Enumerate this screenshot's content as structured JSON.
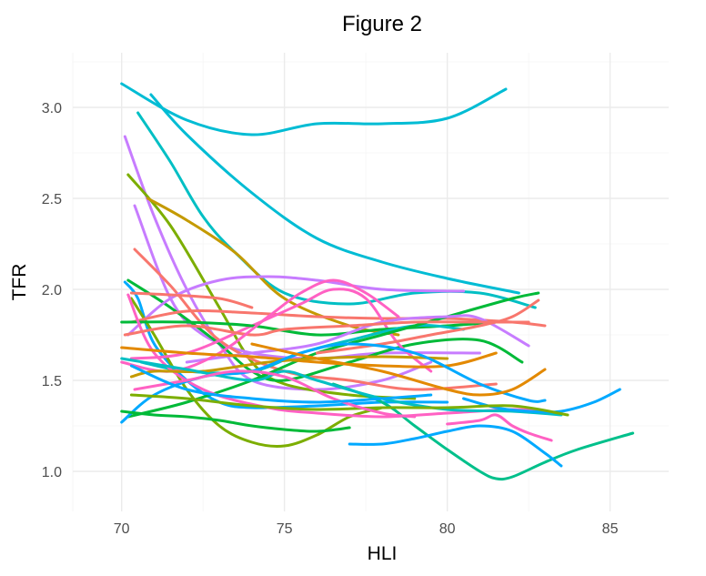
{
  "chart_data": {
    "type": "line",
    "title": "Figure 2",
    "xlabel": "HLI",
    "ylabel": "TFR",
    "xlim": [
      68.5,
      86.8
    ],
    "ylim": [
      0.78,
      3.3
    ],
    "x_ticks": [
      70,
      75,
      80,
      85
    ],
    "y_ticks": [
      1.0,
      1.5,
      2.0,
      2.5,
      3.0
    ],
    "x_tick_labels": [
      "70",
      "75",
      "80",
      "85"
    ],
    "y_tick_labels": [
      "1.0",
      "1.5",
      "2.0",
      "2.5",
      "3.0"
    ],
    "grid": true,
    "legend": "none",
    "series": [
      {
        "color": "#00BCD4",
        "points": [
          [
            70.0,
            3.13
          ],
          [
            72.0,
            2.93
          ],
          [
            74.0,
            2.85
          ],
          [
            76.0,
            2.91
          ],
          [
            78.0,
            2.91
          ],
          [
            80.0,
            2.94
          ],
          [
            81.8,
            3.1
          ]
        ]
      },
      {
        "color": "#00BCD4",
        "points": [
          [
            70.9,
            3.07
          ],
          [
            72.0,
            2.85
          ],
          [
            74.0,
            2.53
          ],
          [
            76.0,
            2.28
          ],
          [
            78.0,
            2.15
          ],
          [
            80.0,
            2.06
          ],
          [
            82.2,
            1.98
          ]
        ]
      },
      {
        "color": "#00BFC4",
        "points": [
          [
            70.5,
            2.97
          ],
          [
            71.5,
            2.7
          ],
          [
            72.5,
            2.4
          ],
          [
            73.5,
            2.2
          ],
          [
            75.0,
            1.98
          ],
          [
            77.0,
            1.92
          ],
          [
            79.0,
            1.98
          ],
          [
            81.0,
            1.98
          ],
          [
            82.7,
            1.9
          ]
        ]
      },
      {
        "color": "#C77CFF",
        "points": [
          [
            70.1,
            2.84
          ],
          [
            71.0,
            2.4
          ],
          [
            72.0,
            2.0
          ],
          [
            73.0,
            1.7
          ],
          [
            74.0,
            1.5
          ],
          [
            76.0,
            1.45
          ],
          [
            78.0,
            1.5
          ],
          [
            79.5,
            1.6
          ]
        ]
      },
      {
        "color": "#7CAE00",
        "points": [
          [
            70.2,
            2.63
          ],
          [
            71.5,
            2.35
          ],
          [
            73.0,
            1.9
          ],
          [
            74.0,
            1.6
          ],
          [
            75.0,
            1.48
          ],
          [
            77.0,
            1.42
          ],
          [
            79.0,
            1.4
          ]
        ]
      },
      {
        "color": "#C77CFF",
        "points": [
          [
            70.4,
            2.46
          ],
          [
            71.5,
            1.95
          ],
          [
            72.5,
            1.75
          ],
          [
            74.0,
            1.65
          ],
          [
            76.0,
            1.62
          ],
          [
            78.0,
            1.65
          ],
          [
            81.0,
            1.65
          ]
        ]
      },
      {
        "color": "#C49A00",
        "points": [
          [
            70.8,
            2.5
          ],
          [
            72.0,
            2.38
          ],
          [
            73.5,
            2.2
          ],
          [
            75.0,
            1.95
          ],
          [
            77.0,
            1.8
          ],
          [
            78.5,
            1.75
          ]
        ]
      },
      {
        "color": "#F8766D",
        "points": [
          [
            70.4,
            2.22
          ],
          [
            71.5,
            2.02
          ],
          [
            73.0,
            1.72
          ],
          [
            75.0,
            1.55
          ],
          [
            77.0,
            1.5
          ],
          [
            79.0,
            1.45
          ],
          [
            81.5,
            1.48
          ]
        ]
      },
      {
        "color": "#00A9FF",
        "points": [
          [
            70.1,
            2.04
          ],
          [
            70.5,
            1.95
          ],
          [
            71.0,
            1.7
          ],
          [
            72.0,
            1.5
          ],
          [
            73.0,
            1.38
          ],
          [
            74.0,
            1.35
          ],
          [
            76.0,
            1.36
          ],
          [
            78.0,
            1.38
          ],
          [
            80.0,
            1.38
          ]
        ]
      },
      {
        "color": "#00BA38",
        "points": [
          [
            70.2,
            2.05
          ],
          [
            71.5,
            1.9
          ],
          [
            73.0,
            1.7
          ],
          [
            74.0,
            1.55
          ],
          [
            75.0,
            1.5
          ],
          [
            77.0,
            1.6
          ],
          [
            79.0,
            1.7
          ],
          [
            81.0,
            1.72
          ],
          [
            82.3,
            1.6
          ]
        ]
      },
      {
        "color": "#7CAE00",
        "points": [
          [
            70.3,
            1.95
          ],
          [
            71.0,
            1.75
          ],
          [
            72.0,
            1.45
          ],
          [
            73.0,
            1.25
          ],
          [
            74.0,
            1.16
          ],
          [
            75.0,
            1.14
          ],
          [
            76.0,
            1.2
          ],
          [
            77.0,
            1.3
          ],
          [
            78.0,
            1.35
          ]
        ]
      },
      {
        "color": "#C77CFF",
        "points": [
          [
            70.2,
            1.75
          ],
          [
            71.5,
            1.95
          ],
          [
            73.0,
            2.05
          ],
          [
            74.5,
            2.07
          ],
          [
            76.0,
            2.05
          ],
          [
            78.0,
            2.0
          ],
          [
            80.5,
            1.99
          ]
        ]
      },
      {
        "color": "#F8766D",
        "points": [
          [
            70.3,
            1.82
          ],
          [
            72.0,
            1.88
          ],
          [
            74.0,
            1.87
          ],
          [
            76.0,
            1.85
          ],
          [
            78.0,
            1.84
          ],
          [
            80.0,
            1.84
          ],
          [
            82.0,
            1.82
          ],
          [
            83.0,
            1.8
          ]
        ]
      },
      {
        "color": "#FF61C3",
        "points": [
          [
            70.3,
            1.62
          ],
          [
            72.0,
            1.65
          ],
          [
            74.0,
            1.8
          ],
          [
            75.5,
            1.92
          ],
          [
            76.5,
            2.0
          ],
          [
            77.5,
            1.95
          ],
          [
            78.5,
            1.7
          ],
          [
            79.5,
            1.55
          ]
        ]
      },
      {
        "color": "#00BA38",
        "points": [
          [
            70.0,
            1.82
          ],
          [
            72.0,
            1.82
          ],
          [
            74.0,
            1.8
          ],
          [
            76.0,
            1.75
          ],
          [
            78.0,
            1.78
          ],
          [
            80.0,
            1.8
          ],
          [
            81.5,
            1.82
          ]
        ]
      },
      {
        "color": "#00BFC4",
        "points": [
          [
            70.6,
            1.6
          ],
          [
            72.0,
            1.55
          ],
          [
            74.0,
            1.55
          ],
          [
            75.5,
            1.65
          ],
          [
            77.0,
            1.72
          ],
          [
            79.0,
            1.8
          ],
          [
            80.5,
            1.78
          ]
        ]
      },
      {
        "color": "#00BA38",
        "points": [
          [
            70.2,
            1.3
          ],
          [
            72.0,
            1.38
          ],
          [
            74.0,
            1.5
          ],
          [
            76.0,
            1.65
          ],
          [
            78.0,
            1.75
          ],
          [
            80.0,
            1.85
          ],
          [
            82.0,
            1.95
          ],
          [
            82.8,
            1.98
          ]
        ]
      },
      {
        "color": "#C77CFF",
        "points": [
          [
            72.0,
            1.6
          ],
          [
            74.0,
            1.65
          ],
          [
            76.0,
            1.7
          ],
          [
            78.0,
            1.82
          ],
          [
            80.0,
            1.85
          ],
          [
            81.0,
            1.84
          ],
          [
            82.5,
            1.69
          ]
        ]
      },
      {
        "color": "#FF61C3",
        "points": [
          [
            70.2,
            1.97
          ],
          [
            71.0,
            1.65
          ],
          [
            72.5,
            1.45
          ],
          [
            74.5,
            1.35
          ],
          [
            76.0,
            1.32
          ],
          [
            78.0,
            1.3
          ],
          [
            80.0,
            1.32
          ],
          [
            82.0,
            1.34
          ],
          [
            83.0,
            1.33
          ]
        ]
      },
      {
        "color": "#F8766D",
        "points": [
          [
            70.1,
            1.75
          ],
          [
            72.0,
            1.8
          ],
          [
            74.0,
            1.75
          ],
          [
            75.0,
            1.78
          ],
          [
            77.0,
            1.8
          ],
          [
            79.0,
            1.82
          ],
          [
            81.0,
            1.82
          ],
          [
            82.5,
            1.82
          ]
        ]
      },
      {
        "color": "#FF61C3",
        "points": [
          [
            70.0,
            1.6
          ],
          [
            71.5,
            1.55
          ],
          [
            73.0,
            1.65
          ],
          [
            74.5,
            1.85
          ],
          [
            75.5,
            1.98
          ],
          [
            76.5,
            2.05
          ],
          [
            77.5,
            1.98
          ],
          [
            78.5,
            1.85
          ]
        ]
      },
      {
        "color": "#F8766D",
        "points": [
          [
            76.0,
            1.65
          ],
          [
            78.0,
            1.7
          ],
          [
            79.5,
            1.75
          ],
          [
            81.0,
            1.8
          ],
          [
            82.0,
            1.85
          ],
          [
            82.8,
            1.94
          ]
        ]
      },
      {
        "color": "#E38900",
        "points": [
          [
            70.0,
            1.68
          ],
          [
            72.0,
            1.65
          ],
          [
            74.0,
            1.63
          ],
          [
            76.0,
            1.6
          ],
          [
            78.0,
            1.58
          ],
          [
            80.0,
            1.58
          ],
          [
            81.5,
            1.65
          ]
        ]
      },
      {
        "color": "#C49A00",
        "points": [
          [
            70.3,
            1.52
          ],
          [
            71.0,
            1.55
          ],
          [
            72.5,
            1.55
          ],
          [
            74.5,
            1.6
          ],
          [
            76.0,
            1.62
          ],
          [
            78.0,
            1.63
          ],
          [
            80.0,
            1.62
          ]
        ]
      },
      {
        "color": "#00A9FF",
        "points": [
          [
            70.0,
            1.27
          ],
          [
            71.0,
            1.42
          ],
          [
            72.5,
            1.52
          ],
          [
            74.0,
            1.55
          ],
          [
            75.5,
            1.65
          ],
          [
            77.0,
            1.7
          ],
          [
            79.0,
            1.65
          ],
          [
            81.0,
            1.48
          ],
          [
            82.5,
            1.39
          ],
          [
            83.0,
            1.39
          ]
        ]
      },
      {
        "color": "#00C08B",
        "points": [
          [
            76.5,
            1.48
          ],
          [
            78.0,
            1.38
          ],
          [
            79.0,
            1.25
          ],
          [
            80.0,
            1.12
          ],
          [
            81.0,
            1.0
          ],
          [
            81.5,
            0.96
          ],
          [
            82.0,
            0.97
          ],
          [
            83.0,
            1.05
          ],
          [
            84.0,
            1.12
          ],
          [
            85.7,
            1.21
          ]
        ]
      },
      {
        "color": "#00A9FF",
        "points": [
          [
            77.0,
            1.15
          ],
          [
            78.0,
            1.15
          ],
          [
            79.0,
            1.18
          ],
          [
            80.0,
            1.22
          ],
          [
            81.0,
            1.25
          ],
          [
            82.0,
            1.22
          ],
          [
            83.0,
            1.1
          ],
          [
            83.5,
            1.03
          ]
        ]
      },
      {
        "color": "#00BFC4",
        "points": [
          [
            70.0,
            1.62
          ],
          [
            72.0,
            1.56
          ],
          [
            74.0,
            1.5
          ],
          [
            75.0,
            1.55
          ],
          [
            76.0,
            1.5
          ],
          [
            78.0,
            1.4
          ],
          [
            80.0,
            1.34
          ],
          [
            82.0,
            1.33
          ],
          [
            83.5,
            1.31
          ]
        ]
      },
      {
        "color": "#00A9FF",
        "points": [
          [
            80.5,
            1.4
          ],
          [
            81.5,
            1.35
          ],
          [
            82.5,
            1.33
          ],
          [
            83.5,
            1.33
          ],
          [
            84.5,
            1.38
          ],
          [
            85.3,
            1.45
          ]
        ]
      },
      {
        "color": "#FF61C3",
        "points": [
          [
            80.0,
            1.26
          ],
          [
            81.0,
            1.28
          ],
          [
            81.5,
            1.31
          ],
          [
            82.0,
            1.25
          ],
          [
            82.5,
            1.21
          ],
          [
            83.2,
            1.17
          ]
        ]
      },
      {
        "color": "#7CAE00",
        "points": [
          [
            70.3,
            1.42
          ],
          [
            72.0,
            1.4
          ],
          [
            74.0,
            1.36
          ],
          [
            76.0,
            1.34
          ],
          [
            78.0,
            1.35
          ],
          [
            80.0,
            1.35
          ],
          [
            82.0,
            1.36
          ],
          [
            83.7,
            1.31
          ]
        ]
      },
      {
        "color": "#E38900",
        "points": [
          [
            74.0,
            1.7
          ],
          [
            76.0,
            1.62
          ],
          [
            78.0,
            1.55
          ],
          [
            80.0,
            1.45
          ],
          [
            81.0,
            1.42
          ],
          [
            82.0,
            1.45
          ],
          [
            83.0,
            1.56
          ]
        ]
      },
      {
        "color": "#00BA38",
        "points": [
          [
            70.0,
            1.33
          ],
          [
            71.0,
            1.31
          ],
          [
            72.0,
            1.3
          ],
          [
            73.0,
            1.28
          ],
          [
            74.0,
            1.25
          ],
          [
            75.0,
            1.23
          ],
          [
            76.0,
            1.22
          ],
          [
            77.0,
            1.24
          ]
        ]
      },
      {
        "color": "#FF61C3",
        "points": [
          [
            70.4,
            1.45
          ],
          [
            72.0,
            1.5
          ],
          [
            73.5,
            1.55
          ],
          [
            75.0,
            1.52
          ],
          [
            76.5,
            1.4
          ],
          [
            78.0,
            1.32
          ],
          [
            79.0,
            1.3
          ]
        ]
      },
      {
        "color": "#00A9FF",
        "points": [
          [
            70.3,
            1.58
          ],
          [
            72.0,
            1.45
          ],
          [
            74.0,
            1.4
          ],
          [
            76.0,
            1.38
          ],
          [
            78.0,
            1.4
          ],
          [
            79.5,
            1.42
          ]
        ]
      },
      {
        "color": "#F8766D",
        "points": [
          [
            70.3,
            1.98
          ],
          [
            71.5,
            1.97
          ],
          [
            73.0,
            1.95
          ],
          [
            74.0,
            1.9
          ]
        ]
      }
    ]
  }
}
